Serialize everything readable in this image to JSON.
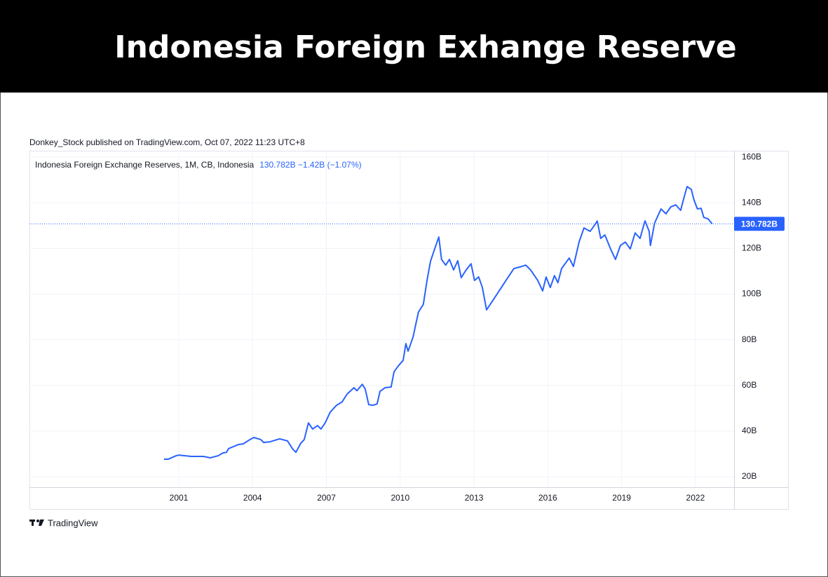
{
  "header": {
    "title": "Indonesia Foreign Exhange Reserve"
  },
  "chart_data": {
    "type": "line",
    "publisher": "Donkey_Stock published on TradingView.com, Oct 07, 2022 11:23 UTC+8",
    "status": "130.782B  −1.42B (−1.07%)",
    "brand": "TradingView",
    "grid": true,
    "x": [
      2000.4,
      2000.57,
      2000.89,
      2001.0,
      2001.51,
      2002.0,
      2002.28,
      2002.6,
      2002.79,
      2002.94,
      2003.02,
      2003.42,
      2003.62,
      2003.85,
      2004.05,
      2004.33,
      2004.45,
      2004.7,
      2005.1,
      2005.42,
      2005.62,
      2005.76,
      2005.96,
      2006.1,
      2006.27,
      2006.44,
      2006.64,
      2006.78,
      2006.95,
      2007.15,
      2007.41,
      2007.64,
      2007.84,
      2008.12,
      2008.24,
      2008.46,
      2008.58,
      2008.72,
      2008.89,
      2009.06,
      2009.18,
      2009.38,
      2009.63,
      2009.75,
      2009.92,
      2010.12,
      2010.23,
      2010.32,
      2010.52,
      2010.74,
      2010.94,
      2011.09,
      2011.23,
      2011.4,
      2011.57,
      2011.68,
      2011.85,
      2012.0,
      2012.17,
      2012.34,
      2012.48,
      2012.68,
      2012.88,
      2013.02,
      2013.19,
      2013.34,
      2013.51,
      2013.74,
      2014.02,
      2014.3,
      2014.62,
      2014.93,
      2015.1,
      2015.3,
      2015.59,
      2015.79,
      2015.93,
      2016.1,
      2016.27,
      2016.41,
      2016.56,
      2016.87,
      2017.04,
      2017.27,
      2017.47,
      2017.72,
      2017.92,
      2018.01,
      2018.15,
      2018.32,
      2018.55,
      2018.75,
      2018.95,
      2019.15,
      2019.35,
      2019.55,
      2019.75,
      2019.95,
      2020.12,
      2020.17,
      2020.34,
      2020.6,
      2020.8,
      2021.0,
      2021.2,
      2021.4,
      2021.51,
      2021.66,
      2021.83,
      2021.94,
      2022.08,
      2022.23,
      2022.34,
      2022.51,
      2022.68
    ],
    "series": [
      {
        "name": "Indonesia Foreign Exchange Reserves, 1M, CB, Indonesia",
        "color": "#2962ff",
        "values": [
          27.7,
          27.7,
          29.2,
          29.5,
          28.9,
          28.9,
          28.3,
          29.2,
          30.4,
          30.7,
          32.3,
          34.1,
          34.4,
          36.0,
          37.2,
          36.3,
          35.0,
          35.3,
          36.6,
          35.7,
          32.3,
          30.7,
          34.7,
          36.3,
          43.6,
          40.9,
          42.4,
          40.9,
          43.6,
          48.2,
          51.3,
          52.8,
          56.2,
          59.0,
          57.7,
          60.5,
          58.4,
          51.6,
          51.3,
          51.9,
          57.4,
          59.0,
          59.3,
          66.0,
          68.5,
          71.0,
          78.3,
          75.0,
          81.1,
          92.1,
          95.5,
          106.0,
          114.3,
          119.8,
          125.0,
          115.2,
          112.7,
          115.2,
          110.6,
          114.6,
          107.2,
          110.6,
          113.3,
          106.0,
          107.5,
          102.9,
          93.1,
          96.8,
          101.4,
          106.0,
          111.2,
          112.1,
          112.7,
          110.6,
          106.0,
          101.4,
          107.5,
          102.9,
          108.1,
          105.0,
          111.2,
          115.8,
          112.1,
          122.8,
          129.0,
          127.5,
          130.5,
          132.0,
          124.4,
          125.9,
          119.8,
          115.2,
          121.3,
          122.8,
          119.8,
          126.8,
          124.4,
          132.1,
          127.5,
          121.3,
          131.1,
          137.3,
          135.2,
          138.2,
          139.1,
          136.7,
          141.3,
          147.1,
          145.9,
          141.3,
          137.3,
          137.6,
          133.6,
          133.0,
          130.782
        ]
      }
    ],
    "last_value": {
      "value": 130.782,
      "label": "130.782B"
    },
    "xlim": [
      1994.93,
      2023.57
    ],
    "xticks": [
      2001,
      2004,
      2007,
      2010,
      2013,
      2016,
      2019,
      2022
    ],
    "ylim": [
      15.4,
      162.8
    ],
    "yticks": [
      {
        "value": 20,
        "label": "20B"
      },
      {
        "value": 40,
        "label": "40B"
      },
      {
        "value": 60,
        "label": "60B"
      },
      {
        "value": 80,
        "label": "80B"
      },
      {
        "value": 100,
        "label": "100B"
      },
      {
        "value": 120,
        "label": "120B"
      },
      {
        "value": 140,
        "label": "140B"
      },
      {
        "value": 160,
        "label": "160B"
      }
    ]
  }
}
